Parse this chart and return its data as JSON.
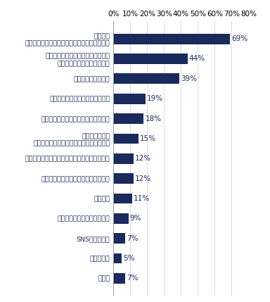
{
  "categories": [
    "その他",
    "社会貢献度",
    "SNSでの発信力",
    "企業からの承認・称賛・期待",
    "人間関係",
    "責任のある仕事・ポジションを任せる",
    "社柄（企業理念、社風、会社の目指す姿など）",
    "ブランディング\n（メディアへの露出回数や露出方法など）",
    "達成感を期待できるミッション・業務",
    "仕事を通じて成長を果たせる予感",
    "選考回数・選考期間",
    "魅力づけできる人材との面接・面談\n（人事、上司、経営層など）",
    "労働条件\n（給与、待遇、福利厚生、休日、勤務地など）"
  ],
  "values": [
    7,
    5,
    7,
    9,
    11,
    12,
    12,
    15,
    18,
    19,
    39,
    44,
    69
  ],
  "bar_color": "#1b2a5c",
  "label_color": "#1b2a5c",
  "value_color": "#1b2a5c",
  "background_color": "#ffffff",
  "grid_color": "#cccccc",
  "spine_color": "#999999",
  "xlim_max": 80,
  "xticks": [
    0,
    10,
    20,
    30,
    40,
    50,
    60,
    70,
    80
  ],
  "bar_height": 0.52,
  "fontsize_label": 6.8,
  "fontsize_tick": 7.5,
  "fontsize_value": 7.5,
  "fig_width": 3.84,
  "fig_height": 4.29,
  "dpi": 100
}
